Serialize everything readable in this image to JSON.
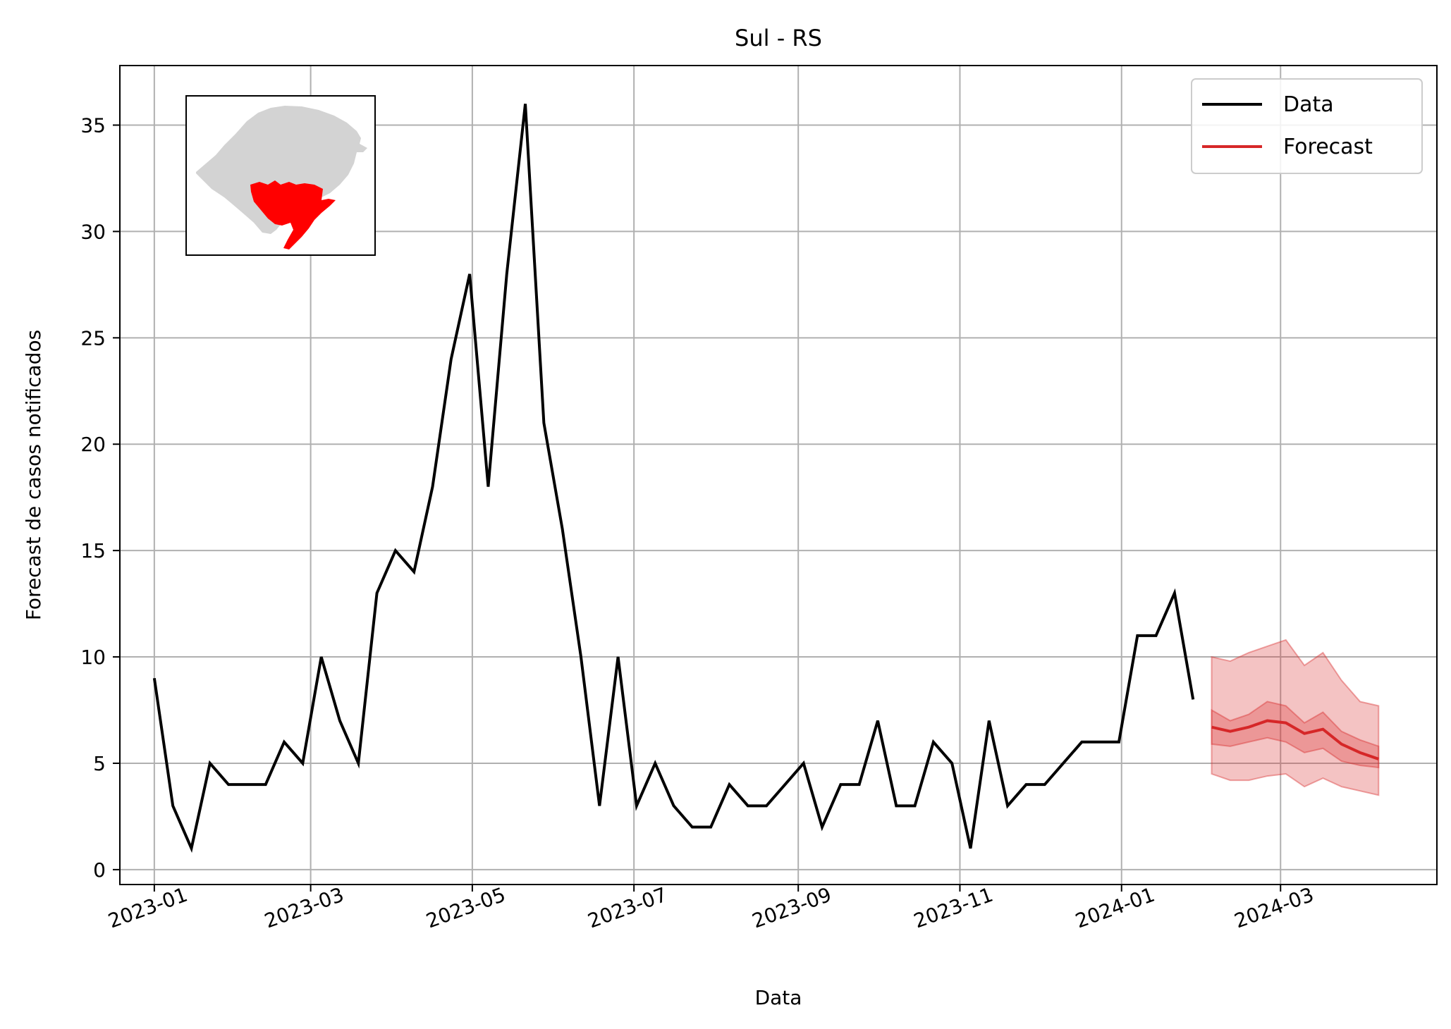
{
  "chart_data": {
    "type": "line",
    "title": "Sul - RS",
    "xlabel": "Data",
    "ylabel": "Forecast de casos notificados",
    "grid": true,
    "legend_position": "top-right",
    "xlim": [
      "2022-12-19",
      "2024-04-29"
    ],
    "ylim": [
      -0.7,
      37.8
    ],
    "x_ticks": [
      "2023-01",
      "2023-03",
      "2023-05",
      "2023-07",
      "2023-09",
      "2023-11",
      "2024-01",
      "2024-03"
    ],
    "y_ticks": [
      0,
      5,
      10,
      15,
      20,
      25,
      30,
      35
    ],
    "series": [
      {
        "name": "Data",
        "color": "#000000",
        "x": [
          "2023-01-01",
          "2023-01-08",
          "2023-01-15",
          "2023-01-22",
          "2023-01-29",
          "2023-02-05",
          "2023-02-12",
          "2023-02-19",
          "2023-02-26",
          "2023-03-05",
          "2023-03-12",
          "2023-03-19",
          "2023-03-26",
          "2023-04-02",
          "2023-04-09",
          "2023-04-16",
          "2023-04-23",
          "2023-04-30",
          "2023-05-07",
          "2023-05-14",
          "2023-05-21",
          "2023-05-28",
          "2023-06-04",
          "2023-06-11",
          "2023-06-18",
          "2023-06-25",
          "2023-07-02",
          "2023-07-09",
          "2023-07-16",
          "2023-07-23",
          "2023-07-30",
          "2023-08-06",
          "2023-08-13",
          "2023-08-20",
          "2023-08-27",
          "2023-09-03",
          "2023-09-10",
          "2023-09-17",
          "2023-09-24",
          "2023-10-01",
          "2023-10-08",
          "2023-10-15",
          "2023-10-22",
          "2023-10-29",
          "2023-11-05",
          "2023-11-12",
          "2023-11-19",
          "2023-11-26",
          "2023-12-03",
          "2023-12-10",
          "2023-12-17",
          "2023-12-24",
          "2023-12-31",
          "2024-01-07",
          "2024-01-14",
          "2024-01-21",
          "2024-01-28"
        ],
        "values": [
          9,
          3,
          1,
          5,
          4,
          4,
          4,
          6,
          5,
          10,
          7,
          5,
          13,
          15,
          14,
          18,
          24,
          28,
          18,
          28,
          36,
          21,
          16,
          10,
          3,
          10,
          3,
          5,
          3,
          2,
          2,
          4,
          3,
          3,
          4,
          5,
          2,
          4,
          4,
          7,
          3,
          3,
          6,
          5,
          1,
          7,
          3,
          4,
          4,
          5,
          6,
          6,
          6,
          11,
          11,
          13,
          8
        ]
      },
      {
        "name": "Forecast",
        "color": "#d62728",
        "x": [
          "2024-02-04",
          "2024-02-11",
          "2024-02-18",
          "2024-02-25",
          "2024-03-03",
          "2024-03-10",
          "2024-03-17",
          "2024-03-24",
          "2024-03-31",
          "2024-04-07"
        ],
        "values": [
          6.7,
          6.5,
          6.7,
          7.0,
          6.9,
          6.4,
          6.6,
          5.9,
          5.5,
          5.2
        ],
        "inner_lower": [
          5.9,
          5.8,
          6.0,
          6.2,
          6.0,
          5.5,
          5.7,
          5.1,
          4.9,
          4.8
        ],
        "inner_upper": [
          7.5,
          7.0,
          7.3,
          7.9,
          7.7,
          6.9,
          7.4,
          6.5,
          6.1,
          5.8
        ],
        "outer_lower": [
          4.5,
          4.2,
          4.2,
          4.4,
          4.5,
          3.9,
          4.3,
          3.9,
          3.7,
          3.5
        ],
        "outer_upper": [
          10.0,
          9.8,
          10.2,
          10.5,
          10.8,
          9.6,
          10.2,
          8.9,
          7.9,
          7.7
        ]
      }
    ],
    "inset_map": {
      "region_color": "#ff0000",
      "state_color": "#d3d3d3"
    }
  }
}
